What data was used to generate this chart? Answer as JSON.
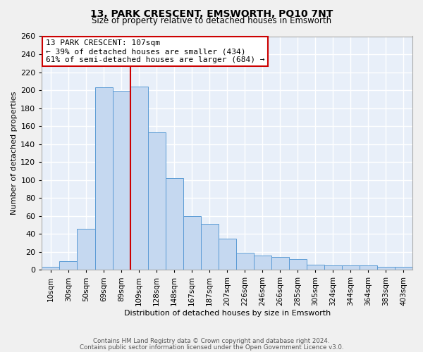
{
  "title": "13, PARK CRESCENT, EMSWORTH, PO10 7NT",
  "subtitle": "Size of property relative to detached houses in Emsworth",
  "xlabel": "Distribution of detached houses by size in Emsworth",
  "ylabel": "Number of detached properties",
  "bar_labels": [
    "10sqm",
    "30sqm",
    "50sqm",
    "69sqm",
    "89sqm",
    "109sqm",
    "128sqm",
    "148sqm",
    "167sqm",
    "187sqm",
    "207sqm",
    "226sqm",
    "246sqm",
    "266sqm",
    "285sqm",
    "305sqm",
    "324sqm",
    "344sqm",
    "364sqm",
    "383sqm",
    "403sqm"
  ],
  "bar_values": [
    3,
    10,
    46,
    203,
    199,
    204,
    153,
    102,
    60,
    51,
    35,
    19,
    16,
    14,
    12,
    6,
    5,
    5,
    5,
    3,
    3
  ],
  "bar_color": "#c5d8f0",
  "bar_edge_color": "#5b9bd5",
  "background_color": "#e8eff9",
  "grid_color": "#ffffff",
  "vline_x_index": 5,
  "vline_color": "#cc0000",
  "annotation_title": "13 PARK CRESCENT: 107sqm",
  "annotation_line1": "← 39% of detached houses are smaller (434)",
  "annotation_line2": "61% of semi-detached houses are larger (684) →",
  "annotation_box_color": "#cc0000",
  "ylim": [
    0,
    260
  ],
  "yticks": [
    0,
    20,
    40,
    60,
    80,
    100,
    120,
    140,
    160,
    180,
    200,
    220,
    240,
    260
  ],
  "footnote1": "Contains HM Land Registry data © Crown copyright and database right 2024.",
  "footnote2": "Contains public sector information licensed under the Open Government Licence v3.0.",
  "fig_width": 6.0,
  "fig_height": 5.0,
  "fig_bg": "#f0f0f0"
}
